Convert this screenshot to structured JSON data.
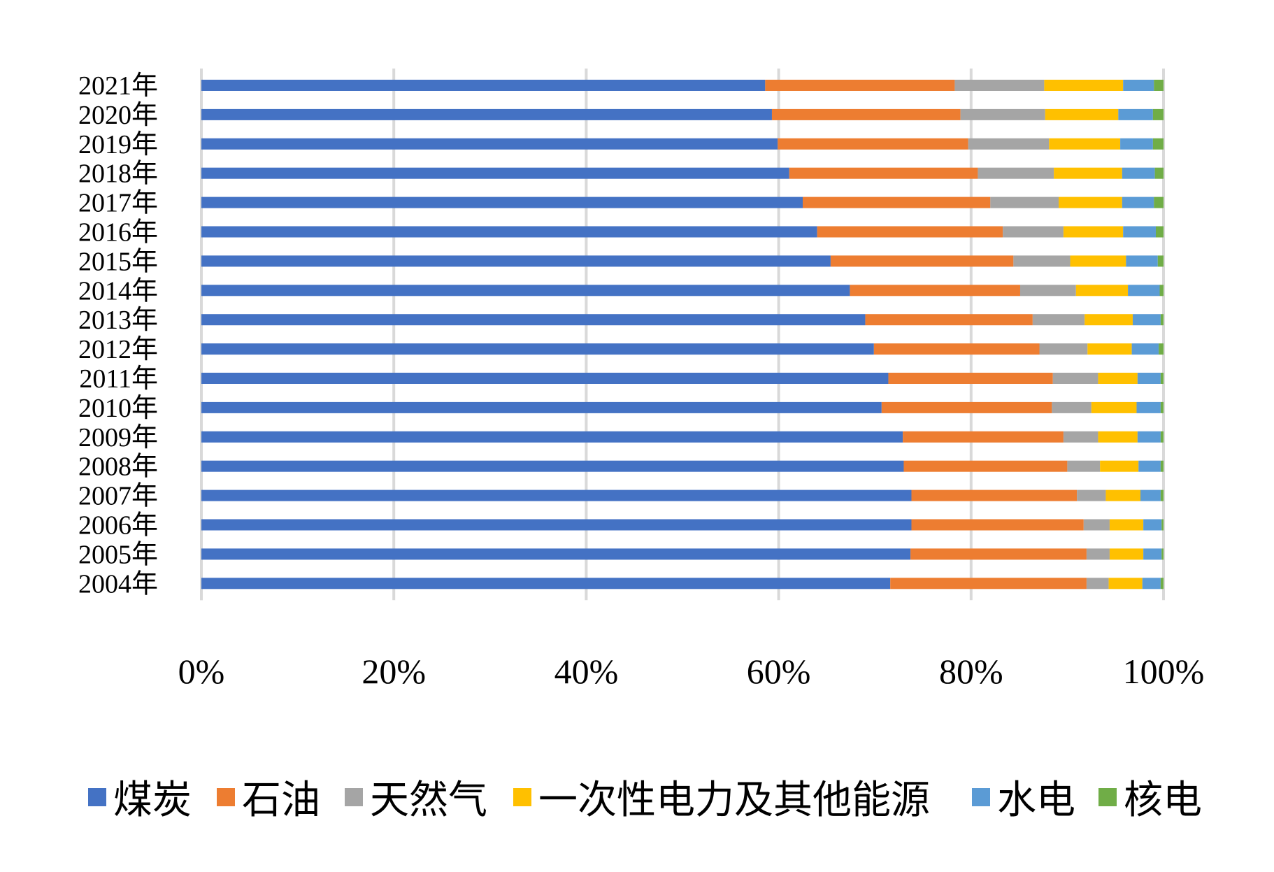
{
  "chart_data": {
    "type": "bar",
    "orientation": "horizontal",
    "stacking": "percent",
    "title": "",
    "xlabel": "",
    "ylabel": "",
    "xlim": [
      0,
      100
    ],
    "x_ticks": [
      "0%",
      "20%",
      "40%",
      "60%",
      "80%",
      "100%"
    ],
    "grid": "vertical",
    "legend_position": "bottom",
    "categories": [
      "2021年",
      "2020年",
      "2019年",
      "2018年",
      "2017年",
      "2016年",
      "2015年",
      "2014年",
      "2013年",
      "2012年",
      "2011年",
      "2010年",
      "2009年",
      "2008年",
      "2007年",
      "2006年",
      "2005年",
      "2004年"
    ],
    "series": [
      {
        "name": "煤炭",
        "color": "#4472C4",
        "values": [
          58.6,
          59.3,
          59.9,
          61.1,
          62.5,
          64.0,
          65.4,
          67.4,
          69.0,
          69.9,
          71.4,
          70.7,
          72.9,
          73.0,
          73.8,
          73.8,
          73.7,
          71.6
        ]
      },
      {
        "name": "石油",
        "color": "#ED7D31",
        "values": [
          19.7,
          19.6,
          19.8,
          19.6,
          19.5,
          19.3,
          19.0,
          17.7,
          17.4,
          17.2,
          17.1,
          17.7,
          16.7,
          17.0,
          17.2,
          17.9,
          18.3,
          20.4
        ]
      },
      {
        "name": "天然气",
        "color": "#A5A5A5",
        "values": [
          9.3,
          8.8,
          8.4,
          7.9,
          7.1,
          6.3,
          5.9,
          5.8,
          5.4,
          5.0,
          4.7,
          4.1,
          3.6,
          3.4,
          3.0,
          2.7,
          2.4,
          2.3
        ]
      },
      {
        "name": "一次性电力及其他能源",
        "color": "#FFC000",
        "values": [
          8.2,
          7.6,
          7.4,
          7.1,
          6.6,
          6.2,
          5.8,
          5.4,
          5.0,
          4.6,
          4.1,
          4.7,
          4.1,
          4.0,
          3.6,
          3.5,
          3.5,
          3.5
        ]
      },
      {
        "name": "水电",
        "color": "#5B9BD5",
        "values": [
          3.2,
          3.6,
          3.4,
          3.4,
          3.3,
          3.4,
          3.3,
          3.3,
          2.9,
          2.8,
          2.4,
          2.5,
          2.4,
          2.3,
          2.1,
          1.9,
          1.9,
          1.9
        ]
      },
      {
        "name": "核电",
        "color": "#70AD47",
        "values": [
          1.0,
          1.1,
          1.1,
          0.9,
          1.0,
          0.8,
          0.6,
          0.4,
          0.3,
          0.5,
          0.3,
          0.3,
          0.3,
          0.3,
          0.3,
          0.2,
          0.2,
          0.3
        ]
      }
    ]
  }
}
